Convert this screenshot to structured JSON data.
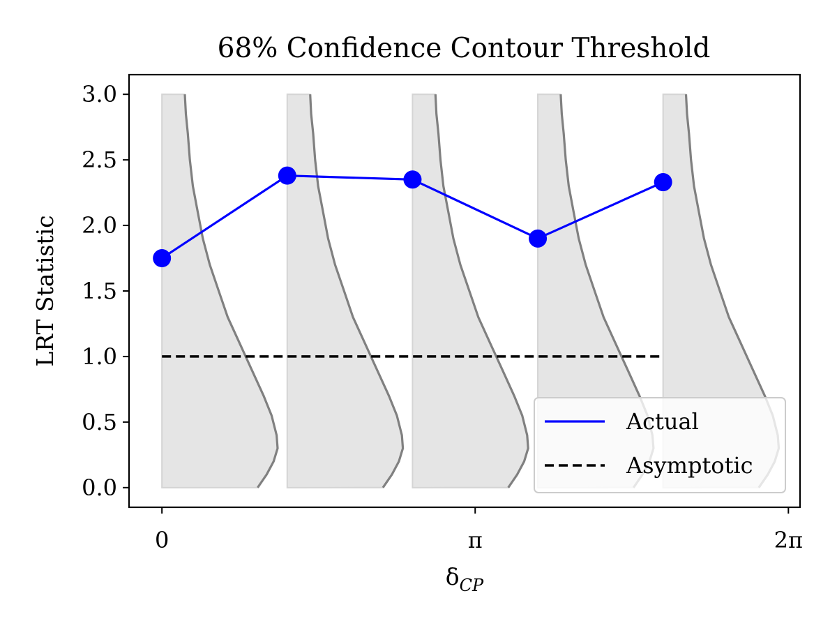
{
  "chart_data": {
    "type": "line",
    "title": "68% Confidence Contour Threshold",
    "xlabel": "δ_CP",
    "xlabel_main": "δ",
    "xlabel_sub": "CP",
    "ylabel": "LRT Statistic",
    "xlim": [
      -0.33,
      6.4
    ],
    "ylim": [
      -0.15,
      3.15
    ],
    "x_ticks": [
      {
        "value": 0,
        "label": "0"
      },
      {
        "value": 3.14159,
        "label": "π"
      },
      {
        "value": 6.28319,
        "label": "2π"
      }
    ],
    "y_ticks": [
      {
        "value": 0.0,
        "label": "0.0"
      },
      {
        "value": 0.5,
        "label": "0.5"
      },
      {
        "value": 1.0,
        "label": "1.0"
      },
      {
        "value": 1.5,
        "label": "1.5"
      },
      {
        "value": 2.0,
        "label": "2.0"
      },
      {
        "value": 2.5,
        "label": "2.5"
      },
      {
        "value": 3.0,
        "label": "3.0"
      }
    ],
    "series": [
      {
        "name": "Actual",
        "color": "#0000ff",
        "style": "solid-with-markers",
        "x": [
          0,
          1.2566,
          2.5133,
          3.7699,
          5.0265
        ],
        "y": [
          1.75,
          2.38,
          2.35,
          1.9,
          2.33
        ]
      },
      {
        "name": "Asymptotic",
        "color": "#000000",
        "style": "dashed",
        "x": [
          0,
          5.0265
        ],
        "y": [
          1.0,
          1.0
        ]
      }
    ],
    "distributions": {
      "color_fill": "#e5e5e5",
      "color_curve": "#808080",
      "centers": [
        0,
        1.2566,
        2.5133,
        3.7699,
        5.0265
      ],
      "y_range": [
        0,
        3.0
      ],
      "curve_points": [
        [
          0.96,
          0.0
        ],
        [
          1.05,
          0.1
        ],
        [
          1.12,
          0.2
        ],
        [
          1.16,
          0.3
        ],
        [
          1.15,
          0.4
        ],
        [
          1.1,
          0.55
        ],
        [
          1.02,
          0.7
        ],
        [
          0.9,
          0.9
        ],
        [
          0.78,
          1.1
        ],
        [
          0.66,
          1.3
        ],
        [
          0.57,
          1.5
        ],
        [
          0.48,
          1.7
        ],
        [
          0.41,
          1.9
        ],
        [
          0.36,
          2.1
        ],
        [
          0.31,
          2.3
        ],
        [
          0.28,
          2.5
        ],
        [
          0.26,
          2.7
        ],
        [
          0.24,
          2.85
        ],
        [
          0.23,
          3.0
        ]
      ]
    },
    "legend": {
      "position": "bottom-right",
      "entries": [
        "Actual",
        "Asymptotic"
      ]
    },
    "grid": false
  }
}
